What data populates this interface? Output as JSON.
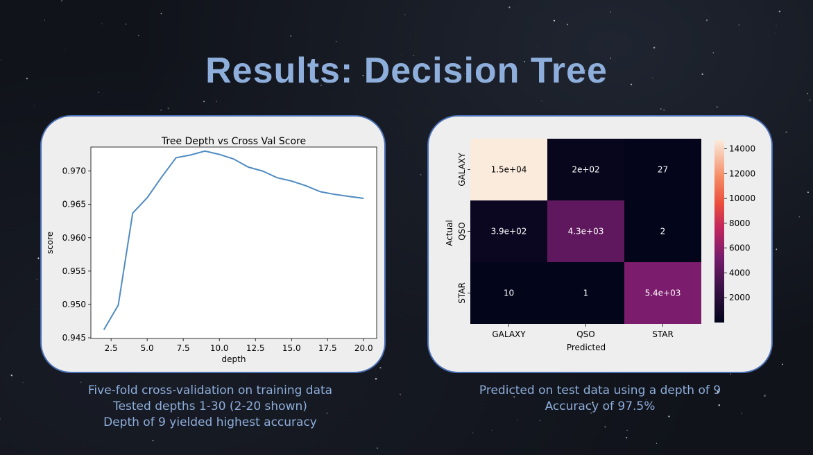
{
  "slide": {
    "title": "Results: Decision Tree",
    "left_caption": [
      "Five-fold cross-validation on training data",
      "Tested depths 1-30 (2-20 shown)",
      "Depth of 9 yielded highest accuracy"
    ],
    "right_caption": [
      "Predicted on test data using a depth of 9",
      "Accuracy of 97.5%"
    ]
  },
  "colors": {
    "title": "#8eaedb",
    "card_border": "#4a6fb5",
    "line": "#4f8bc0"
  },
  "chart_data": [
    {
      "type": "line",
      "title": "Tree Depth vs Cross Val Score",
      "xlabel": "depth",
      "ylabel": "score",
      "x": [
        2,
        3,
        4,
        5,
        6,
        7,
        8,
        9,
        10,
        11,
        12,
        13,
        14,
        15,
        16,
        17,
        18,
        19,
        20
      ],
      "values": [
        0.9462,
        0.9499,
        0.9637,
        0.966,
        0.9691,
        0.972,
        0.9724,
        0.973,
        0.9725,
        0.9718,
        0.9706,
        0.97,
        0.969,
        0.9685,
        0.9678,
        0.9669,
        0.9665,
        0.9662,
        0.9659
      ],
      "xticks": [
        "2.5",
        "5.0",
        "7.5",
        "10.0",
        "12.5",
        "15.0",
        "17.5",
        "20.0"
      ],
      "yticks": [
        "0.945",
        "0.950",
        "0.955",
        "0.960",
        "0.965",
        "0.970"
      ],
      "xlim": [
        1.1,
        20.9
      ],
      "ylim": [
        0.9449,
        0.9736
      ],
      "grid": false
    },
    {
      "type": "heatmap",
      "xlabel": "Predicted",
      "ylabel": "Actual",
      "categories": [
        "GALAXY",
        "QSO",
        "STAR"
      ],
      "values": [
        [
          14700,
          200,
          27
        ],
        [
          390,
          4300,
          2
        ],
        [
          10,
          1,
          5400
        ]
      ],
      "labels": [
        [
          "1.5e+04",
          "2e+02",
          "27"
        ],
        [
          "3.9e+02",
          "4.3e+03",
          "2"
        ],
        [
          "10",
          "1",
          "5.4e+03"
        ]
      ],
      "colorbar_ticks": [
        "2000",
        "4000",
        "6000",
        "8000",
        "10000",
        "12000",
        "14000"
      ],
      "colorbar_range": [
        0,
        14700
      ]
    }
  ]
}
